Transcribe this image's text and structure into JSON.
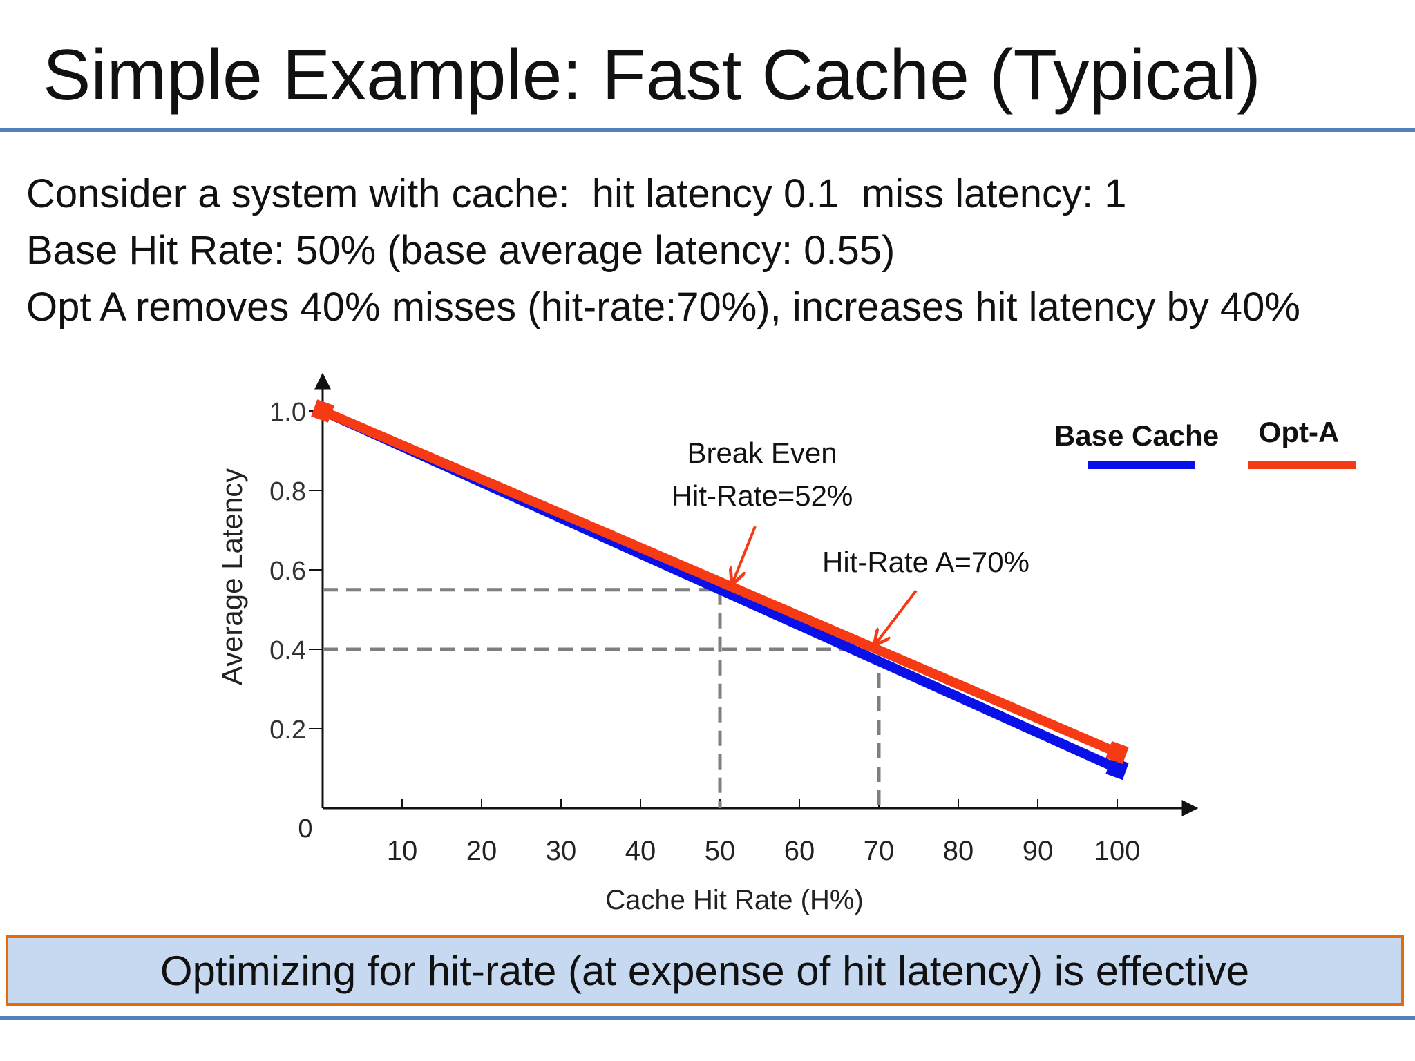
{
  "slide": {
    "title": "Simple Example: Fast Cache (Typical)",
    "lines": [
      "Consider a system with cache:  hit latency 0.1  miss latency: 1",
      "Base Hit Rate: 50% (base average latency: 0.55)",
      "Opt A removes 40% misses (hit-rate:70%), increases hit latency by 40%"
    ],
    "callout": "Optimizing for hit-rate (at expense of hit latency) is effective"
  },
  "chart_data": {
    "type": "line",
    "title": "",
    "xlabel": "Cache Hit Rate (H%)",
    "ylabel": "Average Latency",
    "xlim": [
      0,
      100
    ],
    "ylim": [
      0,
      1.0
    ],
    "x_ticks": [
      "10",
      "20",
      "30",
      "40",
      "50",
      "60",
      "70",
      "80",
      "90",
      "100"
    ],
    "y_ticks": [
      "0.2",
      "0.4",
      "0.6",
      "0.8",
      "1.0"
    ],
    "origin_label": "0",
    "grid": false,
    "legend_position": "top-right",
    "series": [
      {
        "name": "Base Cache",
        "color": "#0a10e8",
        "x": [
          0,
          100
        ],
        "y": [
          1.0,
          0.1
        ]
      },
      {
        "name": "Opt-A",
        "color": "#f53a14",
        "x": [
          0,
          100
        ],
        "y": [
          1.0,
          0.14
        ]
      }
    ],
    "reference_lines": [
      {
        "x": 50,
        "y": 0.55
      },
      {
        "x": 70,
        "y": 0.4
      }
    ],
    "annotations": [
      {
        "lines": [
          "Break Even",
          "Hit-Rate=52%"
        ],
        "target": {
          "x": 52,
          "y": 0.553
        }
      },
      {
        "lines": [
          "Hit-Rate A=70%"
        ],
        "target": {
          "x": 70,
          "y": 0.398
        }
      }
    ],
    "annotation_color": "#f53a14"
  }
}
